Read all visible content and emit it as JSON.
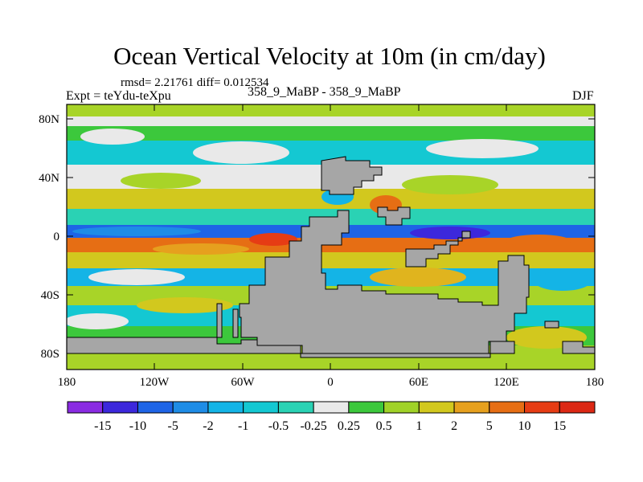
{
  "header": {
    "title": "Ocean Vertical Velocity at 10m (in cm/day)",
    "stats": "rmsd= 2.21761 diff= 0.012534",
    "expt": "Expt = teYdu-teXpu",
    "case": "358_9_MaBP - 358_9_MaBP",
    "season": "DJF"
  },
  "map": {
    "lat_labels": [
      "80N",
      "40N",
      "0",
      "40S",
      "80S"
    ],
    "lon_labels": [
      "180",
      "120W",
      "60W",
      "0",
      "60E",
      "120E",
      "180"
    ],
    "colors": {
      "land": "#a6a6a6",
      "zero_band": "#e9e9e9"
    }
  },
  "colorbar": {
    "labels": [
      "-15",
      "-10",
      "-5",
      "-2",
      "-1",
      "-0.5",
      "-0.25",
      "0.25",
      "0.5",
      "1",
      "2",
      "5",
      "10",
      "15"
    ],
    "colors": [
      "#8a2be2",
      "#3c28dc",
      "#1e64e6",
      "#1e8ce6",
      "#14b4e6",
      "#14c8d2",
      "#2ad2b4",
      "#e9e9e9",
      "#3cc83c",
      "#a0d228",
      "#d2c81e",
      "#e6a01e",
      "#e66e14",
      "#e63c14",
      "#dc2814"
    ]
  }
}
